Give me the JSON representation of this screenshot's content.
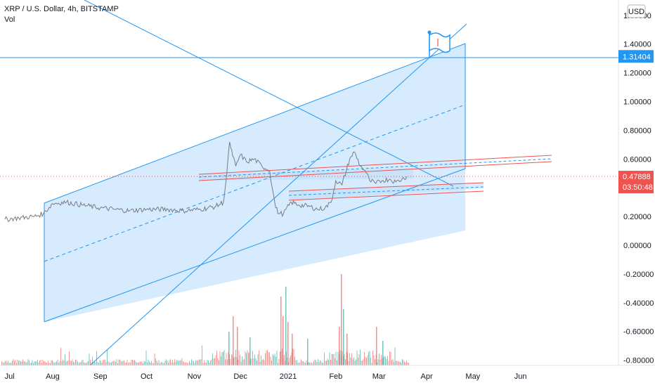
{
  "header": {
    "symbol_line": "XRP / U.S. Dollar, 4h, BITSTAMP",
    "volume_label": "Vol",
    "currency_badge": "USD"
  },
  "chart_data": {
    "type": "line",
    "title": "XRP / U.S. Dollar, 4h, BITSTAMP",
    "xlabel": "",
    "ylabel": "",
    "x_ticks": [
      "Jul",
      "Aug",
      "Sep",
      "Oct",
      "Nov",
      "Dec",
      "2021",
      "Feb",
      "Mar",
      "Apr",
      "May",
      "Jun"
    ],
    "y_ticks": [
      "1.60000",
      "1.40000",
      "1.20000",
      "1.00000",
      "0.80000",
      "0.60000",
      "0.40000",
      "0.20000",
      "0.00000",
      "-0.20000",
      "-0.40000",
      "-0.60000",
      "-0.80000"
    ],
    "ylim": [
      -0.84,
      1.7
    ],
    "grid": false,
    "price_series": {
      "name": "XRP/USD",
      "color": "#787b86",
      "x": [
        "2020-07-01",
        "2020-07-10",
        "2020-07-20",
        "2020-07-26",
        "2020-08-01",
        "2020-08-10",
        "2020-08-20",
        "2020-09-01",
        "2020-09-10",
        "2020-09-20",
        "2020-10-01",
        "2020-10-15",
        "2020-10-25",
        "2020-11-05",
        "2020-11-15",
        "2020-11-20",
        "2020-11-22",
        "2020-11-24",
        "2020-11-26",
        "2020-11-28",
        "2020-12-01",
        "2020-12-05",
        "2020-12-10",
        "2020-12-15",
        "2020-12-20",
        "2020-12-22",
        "2020-12-24",
        "2020-12-26",
        "2020-12-29",
        "2021-01-03",
        "2021-01-08",
        "2021-01-15",
        "2021-01-20",
        "2021-01-25",
        "2021-01-29",
        "2021-02-01",
        "2021-02-05",
        "2021-02-10",
        "2021-02-13",
        "2021-02-17",
        "2021-02-20",
        "2021-02-23",
        "2021-02-27",
        "2021-03-03",
        "2021-03-08",
        "2021-03-12",
        "2021-03-16",
        "2021-03-19"
      ],
      "values": [
        0.18,
        0.19,
        0.2,
        0.22,
        0.29,
        0.3,
        0.28,
        0.26,
        0.25,
        0.24,
        0.25,
        0.25,
        0.24,
        0.25,
        0.27,
        0.3,
        0.48,
        0.72,
        0.62,
        0.55,
        0.63,
        0.58,
        0.6,
        0.55,
        0.52,
        0.38,
        0.26,
        0.22,
        0.22,
        0.3,
        0.28,
        0.27,
        0.25,
        0.26,
        0.3,
        0.45,
        0.42,
        0.6,
        0.65,
        0.55,
        0.52,
        0.45,
        0.43,
        0.45,
        0.46,
        0.44,
        0.46,
        0.47888
      ]
    },
    "volume": {
      "name": "Vol",
      "colors": {
        "up": "#26a69a",
        "down": "#ef5350"
      }
    },
    "price_markers": [
      {
        "label": "1.31404",
        "value": 1.31404,
        "color": "#2196f3"
      },
      {
        "label": "0.47888",
        "value": 0.47888,
        "color": "#ef5350"
      },
      {
        "label": "03:50:48",
        "value": 0.42,
        "color": "#ef5350"
      }
    ],
    "colors": {
      "channel_fill": "#bbdefb",
      "channel_line": "#2196f3",
      "red_channel": "#ef5350",
      "text": "#131722"
    }
  }
}
